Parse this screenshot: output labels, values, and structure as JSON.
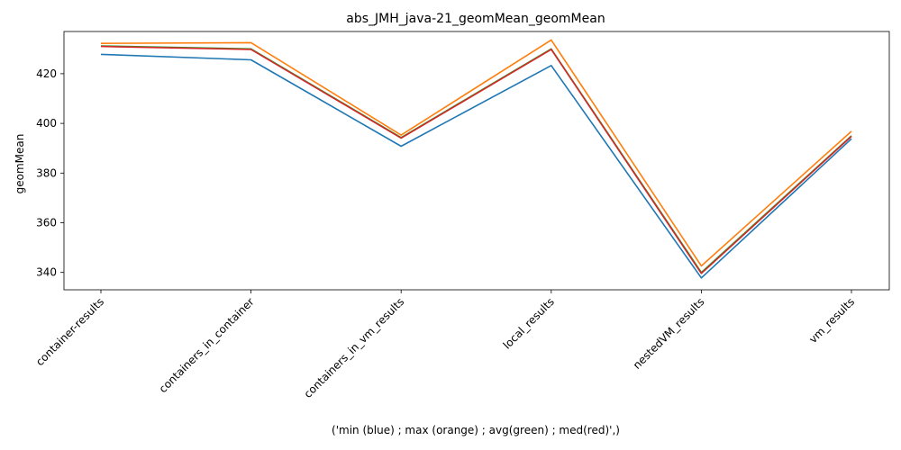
{
  "chart_data": {
    "type": "line",
    "title": "abs_JMH_java-21_geomMean_geomMean",
    "xlabel": "('min (blue) ; max (orange) ; avg(green) ; med(red)',)",
    "ylabel": "geomMean",
    "categories": [
      "container-results",
      "containers_in_container",
      "containers_in_vm_results",
      "local_results",
      "nestedVM_results",
      "vm_results"
    ],
    "ylim": [
      333,
      437
    ],
    "yticks": [
      340,
      360,
      380,
      400,
      420
    ],
    "grid": false,
    "series": [
      {
        "color": "#1f77b4",
        "values": [
          427.8,
          425.6,
          390.8,
          423.3,
          337.8,
          393.8
        ]
      },
      {
        "color": "#ff7f0e",
        "values": [
          432.2,
          432.5,
          395.3,
          433.6,
          342.6,
          396.8
        ]
      },
      {
        "color": "#2ca02c",
        "values": [
          431.2,
          430.0,
          394.3,
          430.0,
          340.0,
          395.0
        ]
      },
      {
        "color": "#d62728",
        "values": [
          431.0,
          429.8,
          394.1,
          429.8,
          339.6,
          394.8
        ]
      }
    ]
  }
}
